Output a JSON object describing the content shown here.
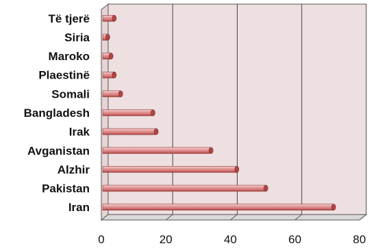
{
  "chart_data": {
    "type": "bar",
    "orientation": "horizontal",
    "style": "3d-cylinder",
    "categories": [
      "Iran",
      "Pakistan",
      "Alzhir",
      "Avganistan",
      "Irak",
      "Bangladesh",
      "Somali",
      "Plaestinë",
      "Maroko",
      "Siria",
      "Të tjerë"
    ],
    "values": [
      72,
      51,
      42,
      34,
      17,
      16,
      6,
      4,
      3,
      2,
      4
    ],
    "xticks": [
      "0",
      "20",
      "40",
      "60",
      "80"
    ],
    "xlim": [
      0,
      80
    ],
    "grid": true,
    "colors": {
      "bar": "#e8a3a3",
      "bar_dark": "#b34444",
      "bar_light": "#f9dede",
      "wall": "#eedfe0",
      "floor": "#d9d9d9",
      "grid": "#444444"
    }
  }
}
